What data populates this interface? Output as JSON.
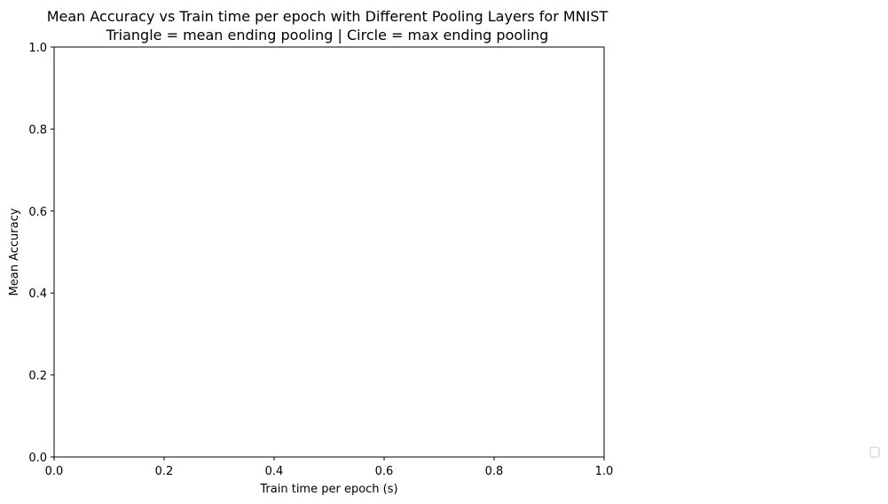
{
  "chart_data": {
    "type": "scatter",
    "title": "Mean Accuracy vs Train time per epoch with Different Pooling Layers for MNIST",
    "subtitle": "Triangle = mean ending pooling | Circle = max ending pooling",
    "xlabel": "Train time per epoch (s)",
    "ylabel": "Mean Accuracy",
    "xlim": [
      0.0,
      1.0
    ],
    "ylim": [
      0.0,
      1.0
    ],
    "xticks": [
      "0.0",
      "0.2",
      "0.4",
      "0.6",
      "0.8",
      "1.0"
    ],
    "yticks": [
      "0.0",
      "0.2",
      "0.4",
      "0.6",
      "0.8",
      "1.0"
    ],
    "grid": false,
    "legend_position": "outside-right-bottom",
    "legend_entries": [],
    "series": []
  }
}
